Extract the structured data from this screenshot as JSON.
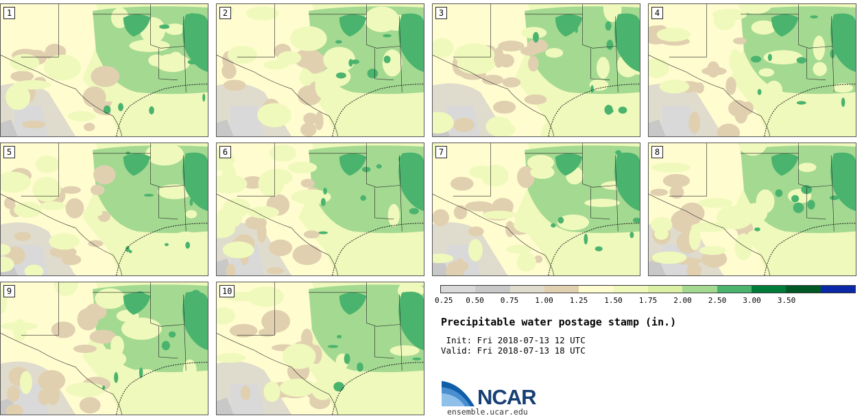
{
  "panels": [
    "1",
    "2",
    "3",
    "4",
    "5",
    "6",
    "7",
    "8",
    "9",
    "10"
  ],
  "colorbar": {
    "colors": [
      "#d9d9d9",
      "#c8c8c8",
      "#e0dccd",
      "#e0d0b0",
      "#fffccf",
      "#f0f9bc",
      "#dcf0a5",
      "#a4d992",
      "#4ab36d",
      "#007c3a",
      "#005827",
      "#0a28a8"
    ],
    "ticks": [
      "0.25",
      "0.50",
      "0.75",
      "1.00",
      "1.25",
      "1.50",
      "1.75",
      "2.00",
      "2.50",
      "3.00",
      "3.50"
    ]
  },
  "title": "Precipitable water postage stamp (in.)",
  "init": " Init: Fri 2018-07-13 12 UTC",
  "valid": "Valid: Fri 2018-07-13 18 UTC",
  "logo_text": "NCAR",
  "site": "ensemble.ucar.edu"
}
